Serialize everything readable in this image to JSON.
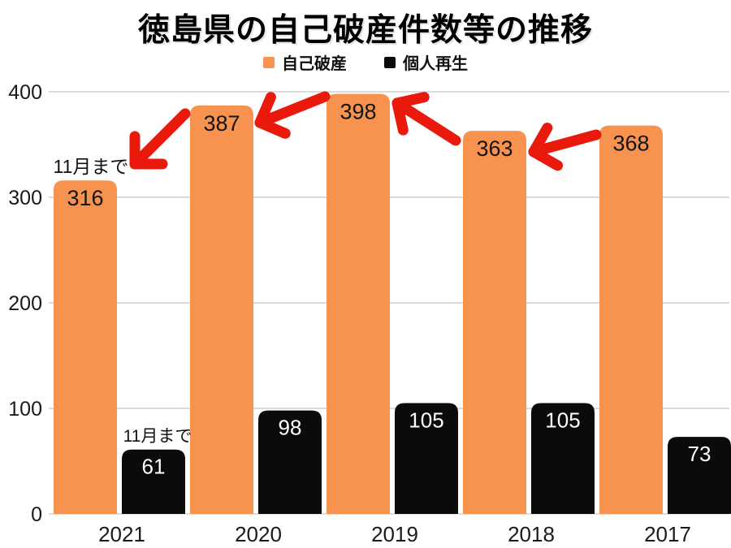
{
  "title": "徳島県の自己破産件数等の推移",
  "legend": {
    "items": [
      {
        "label": "自己破産",
        "color": "#F7934E"
      },
      {
        "label": "個人再生",
        "color": "#0B0B0B"
      }
    ]
  },
  "colors": {
    "bankruptcy_bar": "#F7934E",
    "rehabilitation_bar": "#0B0B0B",
    "arrow_red": "#E9190C",
    "gridline": "#DBDBDB",
    "axis_text": "#1A1A1A",
    "value_on_orange": "#141414",
    "value_on_black": "#FFFFFF",
    "background": "#FFFFFF"
  },
  "chart_data": {
    "type": "bar",
    "title": "徳島県の自己破産件数等の推移",
    "categories": [
      "2021",
      "2020",
      "2019",
      "2018",
      "2017"
    ],
    "series": [
      {
        "name": "自己破産",
        "color": "#F7934E",
        "values": [
          316,
          387,
          398,
          363,
          368
        ]
      },
      {
        "name": "個人再生",
        "color": "#0B0B0B",
        "values": [
          61,
          98,
          105,
          105,
          73
        ]
      }
    ],
    "xlabel": "",
    "ylabel": "",
    "ylim": [
      0,
      400
    ],
    "yticks": [
      0,
      100,
      200,
      300,
      400
    ],
    "grid": true,
    "legend_position": "top",
    "annotations": [
      {
        "text": "11月まで",
        "x": 112,
        "y": 213,
        "font_size": 23
      },
      {
        "text": "11月まで",
        "x": 194,
        "y": 544,
        "font_size": 21
      }
    ],
    "arrows": [
      {
        "tail": [
          228,
          140
        ],
        "tip": [
          166,
          202
        ]
      },
      {
        "tail": [
          400,
          119
        ],
        "tip": [
          320,
          151
        ]
      },
      {
        "tail": [
          561,
          173
        ],
        "tip": [
          489,
          127
        ]
      },
      {
        "tail": [
          734,
          166
        ],
        "tip": [
          657,
          187
        ]
      }
    ]
  }
}
